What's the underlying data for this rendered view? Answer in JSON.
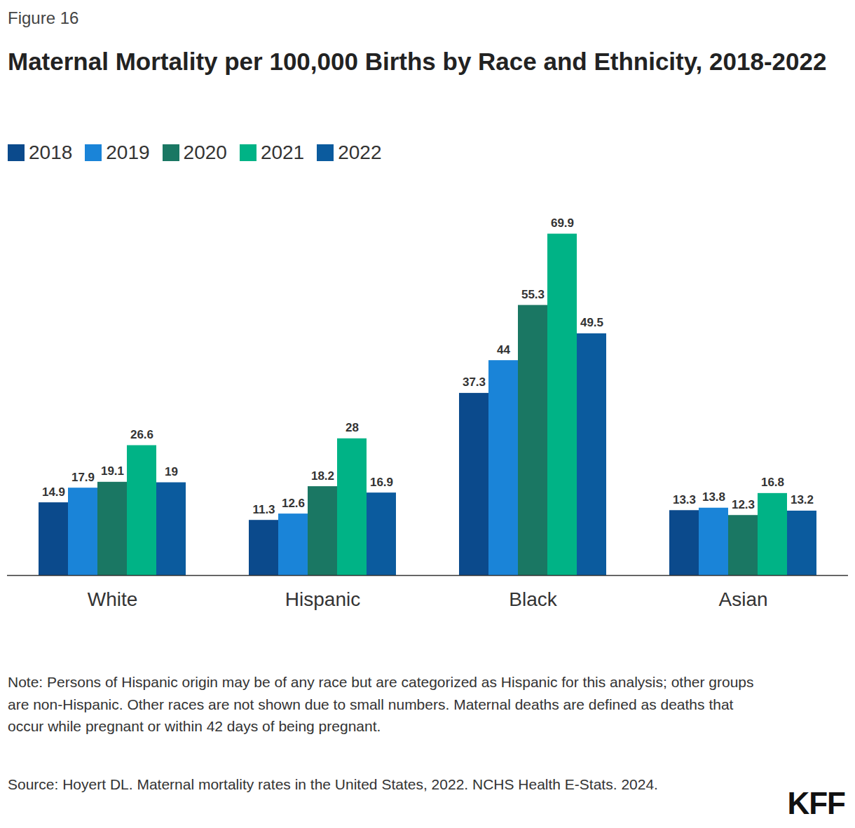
{
  "chart_data": {
    "type": "bar",
    "figure_label": "Figure 16",
    "title": "Maternal Mortality per 100,000 Births by Race and Ethnicity, 2018-2022",
    "categories": [
      "White",
      "Hispanic",
      "Black",
      "Asian"
    ],
    "series": [
      {
        "name": "2018",
        "color": "#0b4a8c",
        "values": [
          14.9,
          11.3,
          37.3,
          13.3
        ]
      },
      {
        "name": "2019",
        "color": "#1a84d8",
        "values": [
          17.9,
          12.6,
          44,
          13.8
        ]
      },
      {
        "name": "2020",
        "color": "#1a7763",
        "values": [
          19.1,
          18.2,
          55.3,
          12.3
        ]
      },
      {
        "name": "2021",
        "color": "#00b386",
        "values": [
          26.6,
          28,
          69.9,
          16.8
        ]
      },
      {
        "name": "2022",
        "color": "#0b5b9e",
        "values": [
          19,
          16.9,
          49.5,
          13.2
        ]
      }
    ],
    "ylim": [
      0,
      75
    ],
    "data_labels": true,
    "tick_labels": "x",
    "legend": "top-left",
    "note": "Note: Persons of Hispanic origin may be of any race but are categorized as Hispanic for this analysis; other groups are non-Hispanic. Other races are not shown due to small numbers. Maternal deaths are defined as deaths that occur while pregnant or within 42 days of being pregnant.",
    "source": "Source: Hoyert DL. Maternal mortality rates in the United States, 2022. NCHS Health E-Stats. 2024.",
    "logo": "KFF"
  }
}
